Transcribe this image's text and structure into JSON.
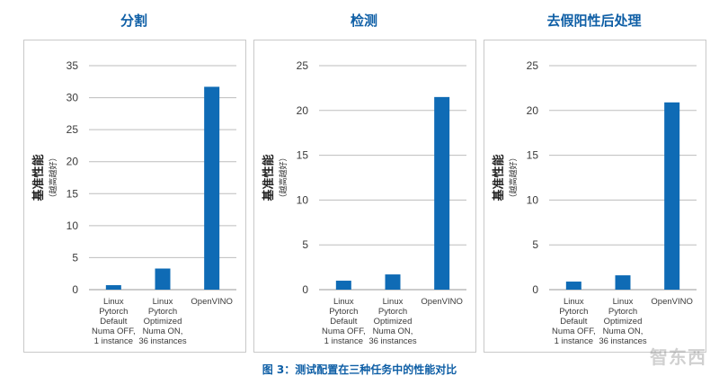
{
  "chart_data": [
    {
      "type": "bar",
      "title": "分割",
      "ylabel": "基准性能",
      "ylabel_sub": "（越高越好）",
      "categories": [
        [
          "Linux",
          "Pytorch",
          "Default",
          "Numa OFF,",
          "1 instance"
        ],
        [
          "Linux",
          "Pytorch",
          "Optimized",
          "Numa ON,",
          "36 instances"
        ],
        [
          "OpenVINO"
        ]
      ],
      "values": [
        0.7,
        3.3,
        31.7
      ],
      "ylim": [
        0,
        35
      ],
      "yticks": [
        0,
        5,
        10,
        15,
        20,
        25,
        30,
        35
      ],
      "grid": true
    },
    {
      "type": "bar",
      "title": "检测",
      "ylabel": "基准性能",
      "ylabel_sub": "（越高越好）",
      "categories": [
        [
          "Linux",
          "Pytorch",
          "Default",
          "Numa OFF,",
          "1 instance"
        ],
        [
          "Linux",
          "Pytorch",
          "Optimized",
          "Numa ON,",
          "36 instances"
        ],
        [
          "OpenVINO"
        ]
      ],
      "values": [
        1.0,
        1.7,
        21.5
      ],
      "ylim": [
        0,
        25
      ],
      "yticks": [
        0,
        5,
        10,
        15,
        20,
        25
      ],
      "grid": true
    },
    {
      "type": "bar",
      "title": "去假阳性后处理",
      "ylabel": "基准性能",
      "ylabel_sub": "（越高越好）",
      "categories": [
        [
          "Linux",
          "Pytorch",
          "Default",
          "Numa OFF,",
          "1 instance"
        ],
        [
          "Linux",
          "Pytorch",
          "Optimized",
          "Numa ON,",
          "36 instances"
        ],
        [
          "OpenVINO"
        ]
      ],
      "values": [
        0.9,
        1.6,
        20.9
      ],
      "ylim": [
        0,
        25
      ],
      "yticks": [
        0,
        5,
        10,
        15,
        20,
        25
      ],
      "grid": true
    }
  ],
  "caption": "图 3：测试配置在三种任务中的性能对比",
  "watermark": "智东西",
  "colors": {
    "bar": "#0f6bb5",
    "title": "#0f5fa6",
    "grid": "#bdbdbd",
    "text": "#3a3a3a"
  }
}
